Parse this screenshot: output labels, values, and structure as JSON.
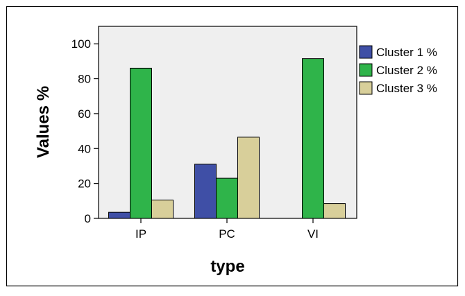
{
  "chart_data": {
    "type": "bar",
    "categories": [
      "IP",
      "PC",
      "VI"
    ],
    "series": [
      {
        "name": "Cluster 1 %",
        "values": [
          3.5,
          31,
          0
        ],
        "color": "#3f4fa6"
      },
      {
        "name": "Cluster 2 %",
        "values": [
          86,
          23,
          91.5
        ],
        "color": "#2fb44a"
      },
      {
        "name": "Cluster 3 %",
        "values": [
          10.5,
          46.5,
          8.5
        ],
        "color": "#d8cf9a"
      }
    ],
    "xlabel": "type",
    "ylabel": "Values %",
    "ylim": [
      0,
      110
    ],
    "yticks": [
      0,
      20,
      40,
      60,
      80,
      100
    ],
    "grid": false,
    "legend_position": "right",
    "plot_background": "#efefef"
  }
}
